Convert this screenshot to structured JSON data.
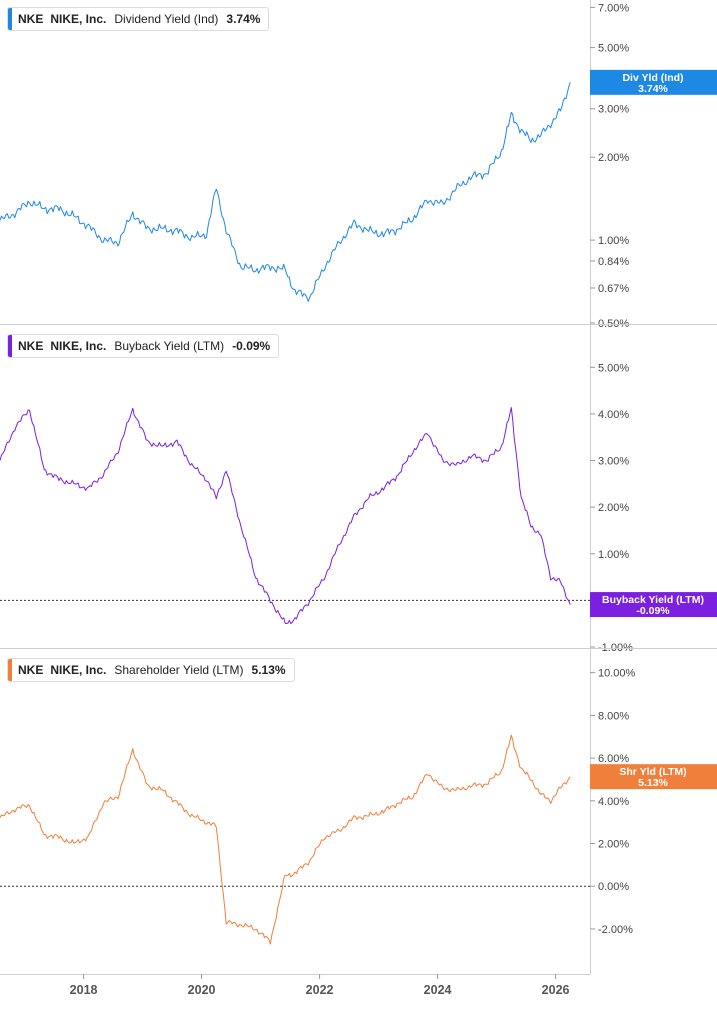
{
  "chart_data": [
    {
      "type": "line",
      "ticker": "NKE",
      "company": "NIKE, Inc.",
      "metric": "Dividend Yield (Ind)",
      "current_value": "3.74%",
      "tag_label": "Div Yld (Ind)",
      "color": "#1e88e5",
      "yscale": "log",
      "ylim": [
        0.5,
        7.2
      ],
      "yticks": [
        0.5,
        0.67,
        0.84,
        1.0,
        2.0,
        3.0,
        5.0,
        7.0
      ],
      "ytick_labels": [
        "0.50%",
        "0.67%",
        "0.84%",
        "1.00%",
        "2.00%",
        "3.00%",
        "5.00%",
        "7.00%"
      ],
      "zero_line": false,
      "series": [
        {
          "x": [
            "2016-08",
            "2016-11",
            "2017-02",
            "2017-05",
            "2017-08",
            "2017-11",
            "2018-02",
            "2018-05",
            "2018-08",
            "2018-11",
            "2019-02",
            "2019-05",
            "2019-08",
            "2019-11",
            "2020-02",
            "2020-04",
            "2020-06",
            "2020-09",
            "2020-12",
            "2021-03",
            "2021-06",
            "2021-08",
            "2021-11",
            "2022-02",
            "2022-05",
            "2022-08",
            "2022-11",
            "2023-02",
            "2023-05",
            "2023-08",
            "2023-11",
            "2024-02",
            "2024-05",
            "2024-08",
            "2024-11",
            "2025-02",
            "2025-04",
            "2025-06",
            "2025-08",
            "2025-10",
            "2025-12",
            "2026-02",
            "2026-04"
          ],
          "values": [
            1.18,
            1.25,
            1.38,
            1.3,
            1.3,
            1.22,
            1.12,
            1.0,
            0.98,
            1.25,
            1.1,
            1.1,
            1.08,
            1.02,
            1.05,
            1.55,
            1.08,
            0.8,
            0.78,
            0.8,
            0.78,
            0.65,
            0.62,
            0.8,
            0.98,
            1.15,
            1.08,
            1.05,
            1.1,
            1.2,
            1.4,
            1.35,
            1.55,
            1.7,
            1.75,
            2.1,
            2.85,
            2.5,
            2.3,
            2.4,
            2.65,
            2.95,
            3.74
          ]
        }
      ]
    },
    {
      "type": "line",
      "ticker": "NKE",
      "company": "NIKE, Inc.",
      "metric": "Buyback Yield (LTM)",
      "current_value": "-0.09%",
      "tag_label": "Buyback Yield (LTM)",
      "color": "#7b1fe0",
      "yscale": "linear",
      "ylim": [
        -1.0,
        5.5
      ],
      "yticks": [
        -1.0,
        1.0,
        2.0,
        3.0,
        4.0,
        5.0
      ],
      "ytick_labels": [
        "-1.00%",
        "1.00%",
        "2.00%",
        "3.00%",
        "4.00%",
        "5.00%"
      ],
      "zero_line": true,
      "series": [
        {
          "x": [
            "2016-08",
            "2016-11",
            "2017-02",
            "2017-05",
            "2017-08",
            "2017-11",
            "2018-02",
            "2018-05",
            "2018-08",
            "2018-11",
            "2019-02",
            "2019-05",
            "2019-08",
            "2019-11",
            "2020-02",
            "2020-04",
            "2020-06",
            "2020-09",
            "2020-12",
            "2021-03",
            "2021-06",
            "2021-08",
            "2021-11",
            "2022-02",
            "2022-05",
            "2022-08",
            "2022-11",
            "2023-02",
            "2023-05",
            "2023-08",
            "2023-11",
            "2024-02",
            "2024-05",
            "2024-08",
            "2024-11",
            "2025-02",
            "2025-04",
            "2025-06",
            "2025-08",
            "2025-10",
            "2025-12",
            "2026-02",
            "2026-04"
          ],
          "values": [
            3.0,
            3.7,
            4.1,
            2.8,
            2.6,
            2.5,
            2.4,
            2.7,
            3.2,
            4.1,
            3.4,
            3.3,
            3.4,
            2.9,
            2.6,
            2.2,
            2.8,
            1.6,
            0.5,
            0.0,
            -0.5,
            -0.4,
            0.0,
            0.5,
            1.2,
            1.8,
            2.2,
            2.4,
            2.7,
            3.2,
            3.6,
            3.0,
            2.9,
            3.1,
            3.0,
            3.3,
            4.1,
            2.2,
            1.6,
            1.4,
            0.5,
            0.4,
            -0.09
          ]
        }
      ]
    },
    {
      "type": "line",
      "ticker": "NKE",
      "company": "NIKE, Inc.",
      "metric": "Shareholder Yield (LTM)",
      "current_value": "5.13%",
      "tag_label": "Shr Yld (LTM)",
      "color": "#f07f3c",
      "yscale": "linear",
      "ylim": [
        -2.8,
        10.5
      ],
      "yticks": [
        -2.0,
        0.0,
        2.0,
        4.0,
        6.0,
        8.0,
        10.0
      ],
      "ytick_labels": [
        "-2.00%",
        "0.00%",
        "2.00%",
        "4.00%",
        "6.00%",
        "8.00%",
        "10.00%"
      ],
      "zero_line": true,
      "series": [
        {
          "x": [
            "2016-08",
            "2016-11",
            "2017-02",
            "2017-05",
            "2017-08",
            "2017-11",
            "2018-02",
            "2018-05",
            "2018-08",
            "2018-11",
            "2019-02",
            "2019-05",
            "2019-08",
            "2019-11",
            "2020-02",
            "2020-04",
            "2020-06",
            "2020-09",
            "2020-12",
            "2021-03",
            "2021-06",
            "2021-08",
            "2021-11",
            "2022-02",
            "2022-05",
            "2022-08",
            "2022-11",
            "2023-02",
            "2023-05",
            "2023-08",
            "2023-11",
            "2024-02",
            "2024-05",
            "2024-08",
            "2024-11",
            "2025-02",
            "2025-04",
            "2025-06",
            "2025-08",
            "2025-10",
            "2025-12",
            "2026-02",
            "2026-04"
          ],
          "values": [
            3.2,
            3.6,
            3.8,
            2.4,
            2.3,
            2.0,
            2.3,
            3.9,
            4.2,
            6.4,
            4.7,
            4.5,
            3.9,
            3.3,
            3.0,
            2.8,
            -1.7,
            -1.8,
            -2.0,
            -2.6,
            0.5,
            0.6,
            1.2,
            2.3,
            2.6,
            3.2,
            3.3,
            3.5,
            3.9,
            4.2,
            5.3,
            4.6,
            4.5,
            4.7,
            4.8,
            5.4,
            7.0,
            5.5,
            5.0,
            4.3,
            4.0,
            4.6,
            5.13
          ]
        }
      ]
    }
  ],
  "x_axis": {
    "ticks": [
      2018,
      2020,
      2022,
      2024,
      2026
    ],
    "tick_labels": [
      "2018",
      "2020",
      "2022",
      "2024",
      "2026"
    ],
    "range": [
      "2016-08",
      "2026-08"
    ]
  }
}
